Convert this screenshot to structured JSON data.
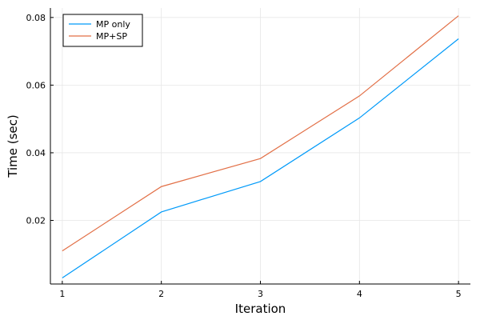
{
  "chart_data": {
    "type": "line",
    "title": "",
    "xlabel": "Iteration",
    "ylabel": "Time (sec)",
    "x": [
      1,
      2,
      3,
      4,
      5
    ],
    "xlim": [
      0.88,
      5.12
    ],
    "ylim": [
      0.0012,
      0.0828
    ],
    "xticks": [
      1,
      2,
      3,
      4,
      5
    ],
    "xtick_labels": [
      "1",
      "2",
      "3",
      "4",
      "5"
    ],
    "yticks": [
      0.02,
      0.04,
      0.06,
      0.08
    ],
    "ytick_labels": [
      "0.02",
      "0.04",
      "0.06",
      "0.08"
    ],
    "grid": true,
    "legend_position": "top-left",
    "series": [
      {
        "name": "MP only",
        "color": "#009af9",
        "values": [
          0.003,
          0.0225,
          0.0315,
          0.0503,
          0.0737
        ]
      },
      {
        "name": "MP+SP",
        "color": "#e26f46",
        "values": [
          0.011,
          0.03,
          0.0383,
          0.0568,
          0.0805
        ]
      }
    ]
  }
}
